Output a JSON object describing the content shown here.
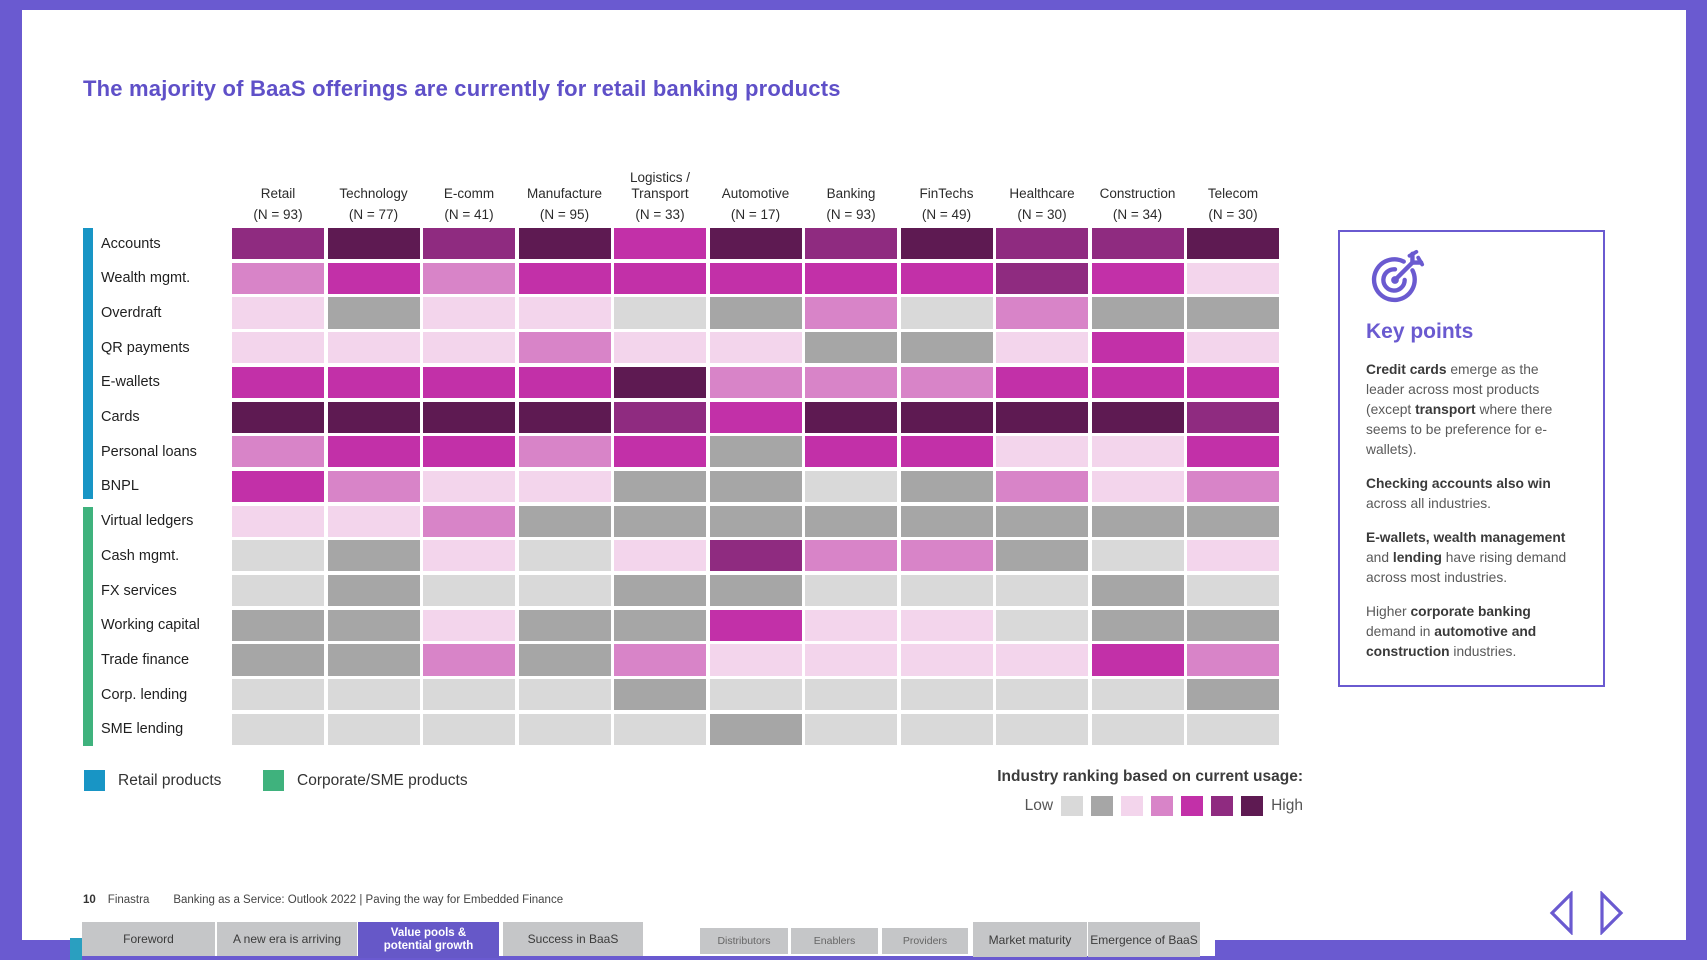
{
  "page": {
    "title": "The majority of BaaS offerings are currently for retail banking products",
    "frame_color": "#6a5ad0",
    "title_color": "#5f50c8"
  },
  "chart_data": {
    "type": "heatmap",
    "title": "The majority of BaaS offerings are currently for retail banking products",
    "columns": [
      {
        "label": "Retail",
        "n": "(N = 93)"
      },
      {
        "label": "Technology",
        "n": "(N = 77)"
      },
      {
        "label": "E-comm",
        "n": "(N = 41)"
      },
      {
        "label": "Manufacture",
        "n": "(N = 95)"
      },
      {
        "label": "Logistics / Transport",
        "n": "(N = 33)"
      },
      {
        "label": "Automotive",
        "n": "(N = 17)"
      },
      {
        "label": "Banking",
        "n": "(N = 93)"
      },
      {
        "label": "FinTechs",
        "n": "(N = 49)"
      },
      {
        "label": "Healthcare",
        "n": "(N = 30)"
      },
      {
        "label": "Construction",
        "n": "(N = 34)"
      },
      {
        "label": "Telecom",
        "n": "(N = 30)"
      }
    ],
    "value_meaning": "industry ranking level 1 (low usage) to 7 (high usage)",
    "rows": [
      {
        "label": "Accounts",
        "group": "retail",
        "values": [
          6,
          7,
          6,
          7,
          5,
          7,
          6,
          7,
          6,
          6,
          7
        ]
      },
      {
        "label": "Wealth mgmt.",
        "group": "retail",
        "values": [
          4,
          5,
          4,
          5,
          5,
          5,
          5,
          5,
          6,
          5,
          3
        ]
      },
      {
        "label": "Overdraft",
        "group": "retail",
        "values": [
          3,
          2,
          3,
          3,
          1,
          2,
          4,
          1,
          4,
          2,
          2
        ]
      },
      {
        "label": "QR payments",
        "group": "retail",
        "values": [
          3,
          3,
          3,
          4,
          3,
          3,
          2,
          2,
          3,
          5,
          3
        ]
      },
      {
        "label": "E-wallets",
        "group": "retail",
        "values": [
          5,
          5,
          5,
          5,
          7,
          4,
          4,
          4,
          5,
          5,
          5
        ]
      },
      {
        "label": "Cards",
        "group": "retail",
        "values": [
          7,
          7,
          7,
          7,
          6,
          5,
          7,
          7,
          7,
          7,
          6
        ]
      },
      {
        "label": "Personal loans",
        "group": "retail",
        "values": [
          4,
          5,
          5,
          4,
          5,
          2,
          5,
          5,
          3,
          3,
          5
        ]
      },
      {
        "label": "BNPL",
        "group": "retail",
        "values": [
          5,
          4,
          3,
          3,
          2,
          2,
          1,
          2,
          4,
          3,
          4
        ]
      },
      {
        "label": "Virtual ledgers",
        "group": "corporate",
        "values": [
          3,
          3,
          4,
          2,
          2,
          2,
          2,
          2,
          2,
          2,
          2
        ]
      },
      {
        "label": "Cash mgmt.",
        "group": "corporate",
        "values": [
          1,
          2,
          3,
          1,
          3,
          6,
          4,
          4,
          2,
          1,
          3
        ]
      },
      {
        "label": "FX services",
        "group": "corporate",
        "values": [
          1,
          2,
          1,
          1,
          2,
          2,
          1,
          1,
          1,
          2,
          1
        ]
      },
      {
        "label": "Working capital",
        "group": "corporate",
        "values": [
          2,
          2,
          3,
          2,
          2,
          5,
          3,
          3,
          1,
          2,
          2
        ]
      },
      {
        "label": "Trade finance",
        "group": "corporate",
        "values": [
          2,
          2,
          4,
          2,
          4,
          3,
          3,
          3,
          3,
          5,
          4
        ]
      },
      {
        "label": "Corp. lending",
        "group": "corporate",
        "values": [
          1,
          1,
          1,
          1,
          2,
          1,
          1,
          1,
          1,
          1,
          2
        ]
      },
      {
        "label": "SME lending",
        "group": "corporate",
        "values": [
          1,
          1,
          1,
          1,
          1,
          2,
          1,
          1,
          1,
          1,
          1
        ]
      }
    ],
    "scale": {
      "title": "Industry ranking based on current usage:",
      "low_label": "Low",
      "high_label": "High",
      "levels": [
        "#d9d9d9",
        "#a6a6a6",
        "#f3d5ec",
        "#d884c8",
        "#c230a8",
        "#8f2b80",
        "#5e1a52"
      ]
    },
    "groups": {
      "retail": {
        "label": "Retail products",
        "color": "#1895c5"
      },
      "corporate": {
        "label": "Corporate/SME products",
        "color": "#3fb27d"
      }
    },
    "legend_position": "bottom-left",
    "grid": false
  },
  "key_points": {
    "heading": "Key points",
    "paragraphs": [
      [
        {
          "t": "Credit cards",
          "b": true
        },
        {
          "t": " emerge as the leader across most products (except ",
          "b": false
        },
        {
          "t": "transport",
          "b": true
        },
        {
          "t": " where there seems to be preference for e-wallets).",
          "b": false
        }
      ],
      [
        {
          "t": "Checking accounts also win",
          "b": true
        },
        {
          "t": " across all industries.",
          "b": false
        }
      ],
      [
        {
          "t": "E-wallets, wealth management",
          "b": true
        },
        {
          "t": " and ",
          "b": false
        },
        {
          "t": "lending",
          "b": true
        },
        {
          "t": " have rising demand across most industries.",
          "b": false
        }
      ],
      [
        {
          "t": "Higher ",
          "b": false
        },
        {
          "t": "corporate banking",
          "b": true
        },
        {
          "t": " demand in ",
          "b": false
        },
        {
          "t": "automotive and construction",
          "b": true
        },
        {
          "t": " industries.",
          "b": false
        }
      ]
    ]
  },
  "footer": {
    "page_number": "10",
    "brand": "Finastra",
    "text": "Banking as a Service: Outlook 2022 | Paving the way for Embedded Finance"
  },
  "nav": {
    "tabs": [
      {
        "label": "Foreword",
        "style": "main",
        "active": false
      },
      {
        "label": "A new era is arriving",
        "style": "main",
        "active": false
      },
      {
        "label": "Value pools & potential growth",
        "style": "main",
        "active": true
      },
      {
        "label": "Success in BaaS",
        "style": "main",
        "active": false
      },
      {
        "label": "Distributors",
        "style": "sub",
        "active": false
      },
      {
        "label": "Enablers",
        "style": "sub",
        "active": false
      },
      {
        "label": "Providers",
        "style": "sub",
        "active": false
      },
      {
        "label": "Market maturity",
        "style": "wide",
        "active": false
      },
      {
        "label": "Emergence of BaaS",
        "style": "wide",
        "active": false
      }
    ]
  }
}
